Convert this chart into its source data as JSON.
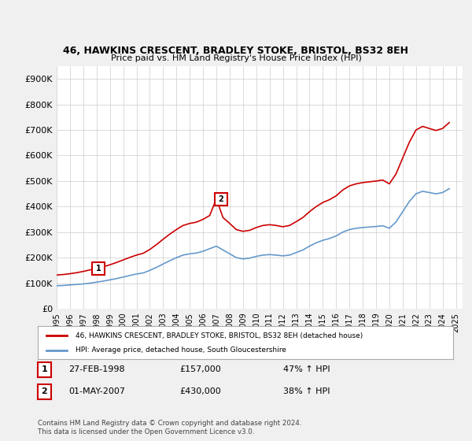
{
  "title": "46, HAWKINS CRESCENT, BRADLEY STOKE, BRISTOL, BS32 8EH",
  "subtitle": "Price paid vs. HM Land Registry's House Price Index (HPI)",
  "ylabel_ticks": [
    "£0",
    "£100K",
    "£200K",
    "£300K",
    "£400K",
    "£500K",
    "£600K",
    "£700K",
    "£800K",
    "£900K"
  ],
  "ytick_values": [
    0,
    100000,
    200000,
    300000,
    400000,
    500000,
    600000,
    700000,
    800000,
    900000
  ],
  "ylim": [
    0,
    950000
  ],
  "xlim_start": 1995.0,
  "xlim_end": 2025.5,
  "red_color": "#cc0000",
  "blue_color": "#6699cc",
  "background_color": "#f0f0f0",
  "plot_bg_color": "#ffffff",
  "grid_color": "#cccccc",
  "sale1_year": 1998.15,
  "sale1_price": 157000,
  "sale2_year": 2007.33,
  "sale2_price": 430000,
  "legend_line1": "46, HAWKINS CRESCENT, BRADLEY STOKE, BRISTOL, BS32 8EH (detached house)",
  "legend_line2": "HPI: Average price, detached house, South Gloucestershire",
  "table_row1": [
    "1",
    "27-FEB-1998",
    "£157,000",
    "47% ↑ HPI"
  ],
  "table_row2": [
    "2",
    "01-MAY-2007",
    "£430,000",
    "38% ↑ HPI"
  ],
  "footnote": "Contains HM Land Registry data © Crown copyright and database right 2024.\nThis data is licensed under the Open Government Licence v3.0.",
  "hpi_years": [
    1995,
    1995.5,
    1996,
    1996.5,
    1997,
    1997.5,
    1998,
    1998.5,
    1999,
    1999.5,
    2000,
    2000.5,
    2001,
    2001.5,
    2002,
    2002.5,
    2003,
    2003.5,
    2004,
    2004.5,
    2005,
    2005.5,
    2006,
    2006.5,
    2007,
    2007.5,
    2008,
    2008.5,
    2009,
    2009.5,
    2010,
    2010.5,
    2011,
    2011.5,
    2012,
    2012.5,
    2013,
    2013.5,
    2014,
    2014.5,
    2015,
    2015.5,
    2016,
    2016.5,
    2017,
    2017.5,
    2018,
    2018.5,
    2019,
    2019.5,
    2020,
    2020.5,
    2021,
    2021.5,
    2022,
    2022.5,
    2023,
    2023.5,
    2024,
    2024.5
  ],
  "hpi_values": [
    90000,
    91000,
    93000,
    95000,
    97000,
    100000,
    104000,
    108000,
    113000,
    118000,
    124000,
    130000,
    136000,
    140000,
    150000,
    162000,
    175000,
    188000,
    200000,
    210000,
    215000,
    218000,
    225000,
    235000,
    245000,
    230000,
    215000,
    200000,
    195000,
    198000,
    205000,
    210000,
    212000,
    210000,
    207000,
    210000,
    220000,
    230000,
    245000,
    258000,
    268000,
    275000,
    285000,
    300000,
    310000,
    315000,
    318000,
    320000,
    322000,
    325000,
    315000,
    340000,
    380000,
    420000,
    450000,
    460000,
    455000,
    450000,
    455000,
    470000
  ],
  "red_years": [
    1995,
    1995.5,
    1996,
    1996.5,
    1997,
    1997.5,
    1998,
    1998.5,
    1999,
    1999.5,
    2000,
    2000.5,
    2001,
    2001.5,
    2002,
    2002.5,
    2003,
    2003.5,
    2004,
    2004.5,
    2005,
    2005.5,
    2006,
    2006.5,
    2007,
    2007.5,
    2008,
    2008.5,
    2009,
    2009.5,
    2010,
    2010.5,
    2011,
    2011.5,
    2012,
    2012.5,
    2013,
    2013.5,
    2014,
    2014.5,
    2015,
    2015.5,
    2016,
    2016.5,
    2017,
    2017.5,
    2018,
    2018.5,
    2019,
    2019.5,
    2020,
    2020.5,
    2021,
    2021.5,
    2022,
    2022.5,
    2023,
    2023.5,
    2024,
    2024.5
  ],
  "red_values": [
    132000,
    134000,
    137000,
    141000,
    146000,
    152000,
    157000,
    164000,
    172000,
    181000,
    191000,
    201000,
    210000,
    217000,
    232000,
    251000,
    272000,
    292000,
    310000,
    326000,
    334000,
    339000,
    350000,
    365000,
    430000,
    357000,
    334000,
    310000,
    303000,
    307000,
    318000,
    326000,
    329000,
    326000,
    321000,
    326000,
    341000,
    357000,
    380000,
    400000,
    416000,
    427000,
    442000,
    465000,
    481000,
    489000,
    494000,
    497000,
    500000,
    504000,
    489000,
    528000,
    590000,
    652000,
    700000,
    714000,
    706000,
    698000,
    706000,
    729000
  ]
}
